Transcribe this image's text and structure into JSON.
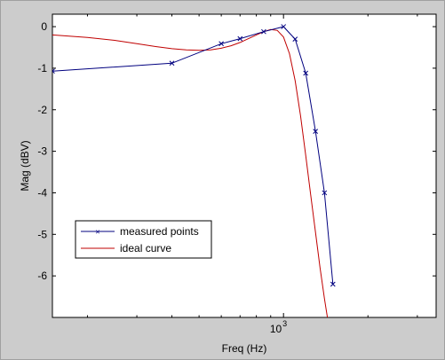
{
  "chart_data": {
    "type": "line",
    "title": "",
    "xlabel": "Freq (Hz)",
    "ylabel": "Mag (dBV)",
    "xscale": "log",
    "xlim": [
      150,
      3500
    ],
    "ylim": [
      -7,
      0.3
    ],
    "yticks": [
      0,
      -1,
      -2,
      -3,
      -4,
      -5,
      -6
    ],
    "xticks": [
      {
        "value": 1000,
        "base": "10",
        "exp": "3"
      }
    ],
    "grid": false,
    "legend_position": "lower-left",
    "series": [
      {
        "name": "measured points",
        "color": "#00007f",
        "marker": "x",
        "x": [
          150,
          400,
          600,
          700,
          850,
          1000,
          1100,
          1200,
          1300,
          1400,
          1500
        ],
        "y": [
          -1.07,
          -0.88,
          -0.41,
          -0.29,
          -0.12,
          0.0,
          -0.3,
          -1.12,
          -2.52,
          -4.0,
          -6.2
        ]
      },
      {
        "name": "ideal curve",
        "color": "#c00000",
        "marker": "none",
        "x": [
          150,
          200,
          250,
          300,
          350,
          400,
          450,
          500,
          550,
          600,
          650,
          700,
          750,
          800,
          850,
          900,
          950,
          1000,
          1050,
          1100,
          1150,
          1200,
          1250,
          1300,
          1350,
          1400,
          1450
        ],
        "y": [
          -0.2,
          -0.26,
          -0.33,
          -0.41,
          -0.48,
          -0.53,
          -0.56,
          -0.57,
          -0.56,
          -0.52,
          -0.46,
          -0.38,
          -0.29,
          -0.2,
          -0.12,
          -0.07,
          -0.09,
          -0.25,
          -0.65,
          -1.3,
          -2.15,
          -3.1,
          -4.05,
          -4.95,
          -5.8,
          -6.55,
          -7.2
        ]
      }
    ]
  }
}
